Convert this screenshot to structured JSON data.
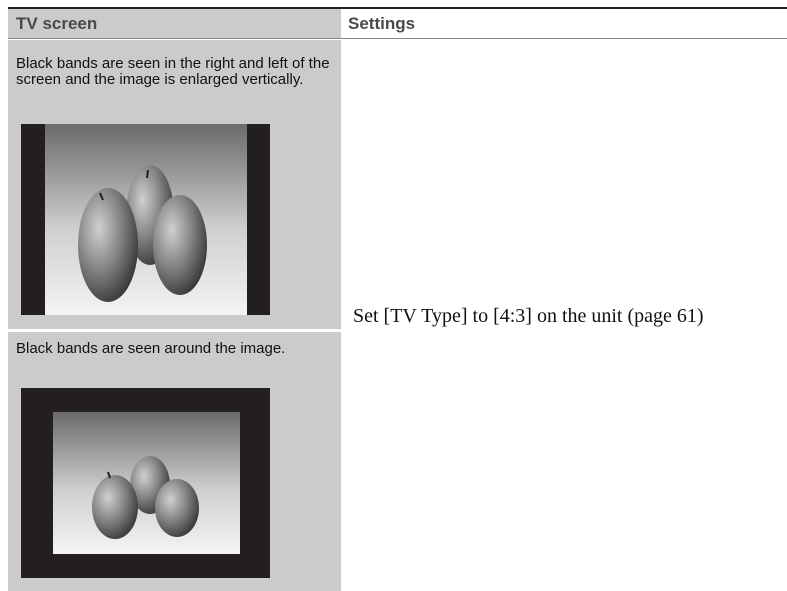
{
  "table": {
    "header": [
      "TV screen",
      "Settings"
    ],
    "rows": [
      {
        "tv_screen": "Black bands are seen in the right and left of the screen and the image is enlarged vertically."
      },
      {
        "tv_screen": "Black bands are seen around the image."
      }
    ],
    "setting": "Set [TV Type] to [4:3] on the unit (page 61)"
  }
}
